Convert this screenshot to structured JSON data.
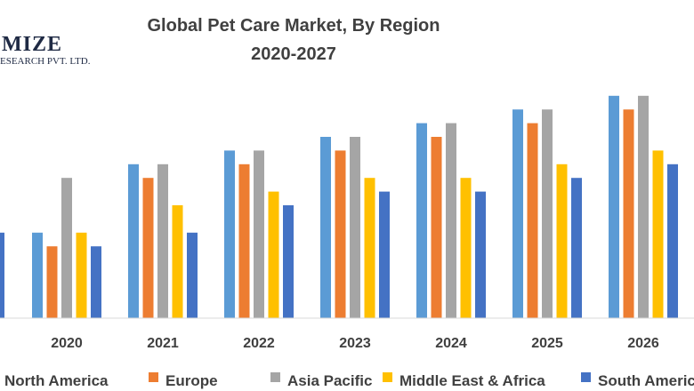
{
  "logo": {
    "main": "MIZE",
    "sub": "ESEARCH PVT. LTD."
  },
  "chart_data": {
    "type": "bar",
    "title": "Global Pet Care Market, By Region",
    "subtitle": "2020-2027",
    "categories": [
      "2020",
      "2021",
      "2022",
      "2023",
      "2024",
      "2025",
      "2026"
    ],
    "series": [
      {
        "name": "North America",
        "color": "#5B9BD5",
        "values": [
          12.5,
          22.5,
          24.5,
          26.5,
          28.5,
          30.5,
          32.5
        ]
      },
      {
        "name": "Europe",
        "color": "#ED7D31",
        "values": [
          10.5,
          20.5,
          22.5,
          24.5,
          26.5,
          28.5,
          30.5
        ]
      },
      {
        "name": "Asia Pacific",
        "color": "#A5A5A5",
        "values": [
          20.5,
          22.5,
          24.5,
          26.5,
          28.5,
          30.5,
          32.5
        ]
      },
      {
        "name": "Middle East & Africa",
        "color": "#FFC000",
        "values": [
          12.5,
          16.5,
          18.5,
          20.5,
          20.5,
          22.5,
          24.5
        ]
      },
      {
        "name": "South America",
        "color": "#4472C4",
        "values": [
          10.5,
          12.5,
          16.5,
          18.5,
          18.5,
          20.5,
          22.5
        ]
      }
    ],
    "ylim": [
      0,
      33
    ],
    "grid": false,
    "legend_position": "bottom"
  }
}
